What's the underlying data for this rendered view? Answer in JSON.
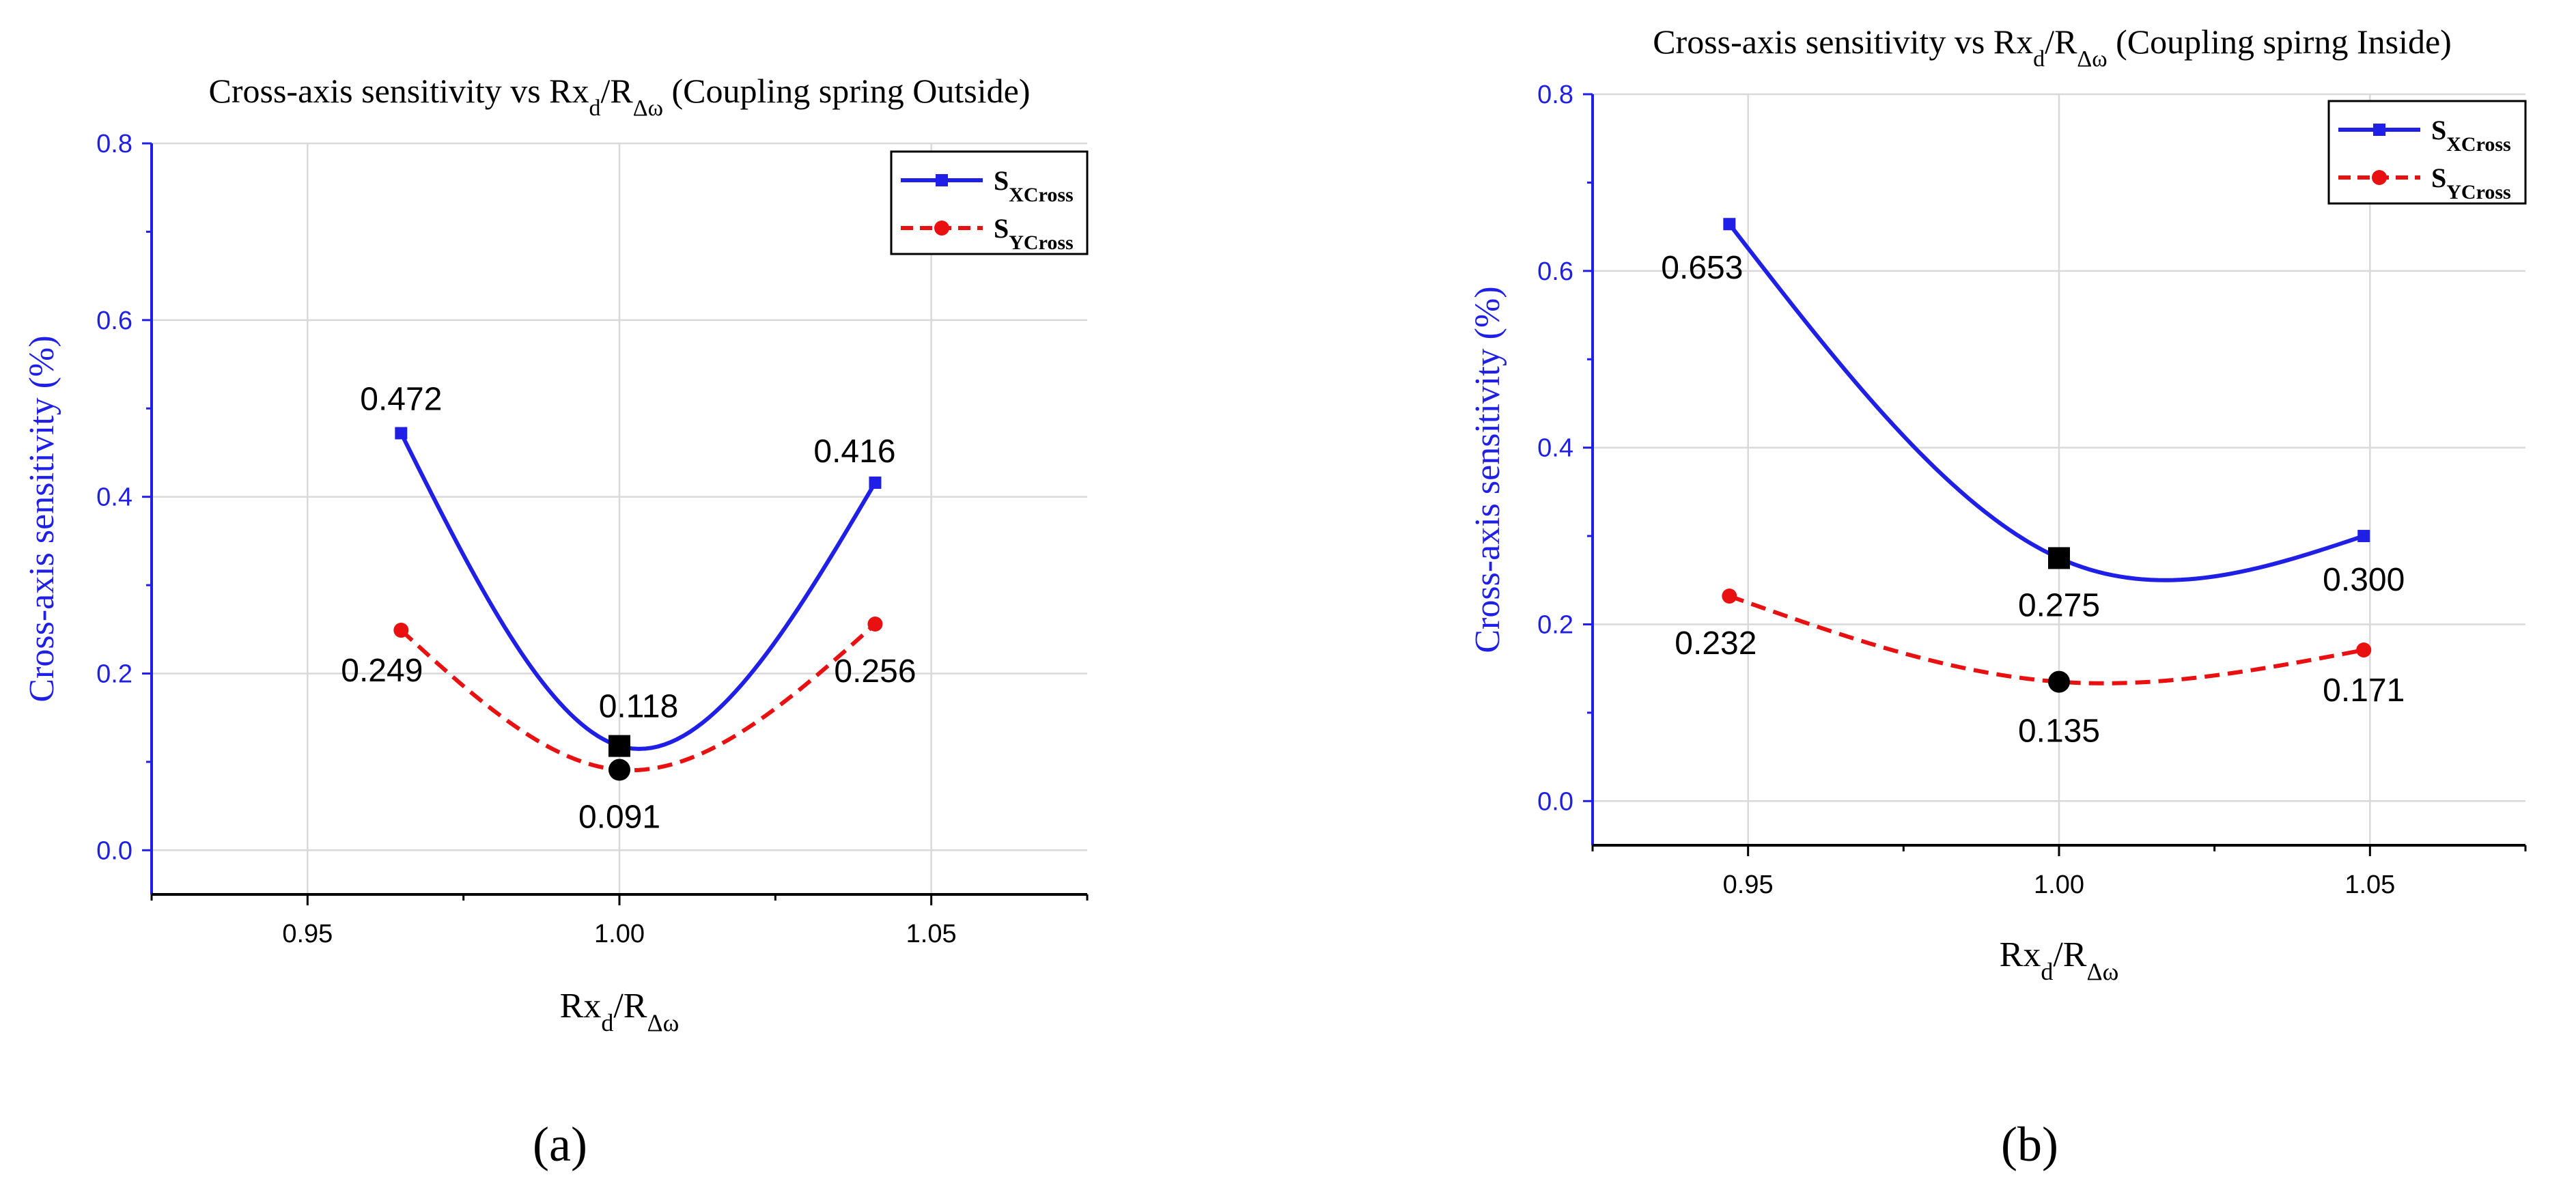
{
  "chart_data": [
    {
      "type": "line",
      "panel_label": "(a)",
      "title": "Cross-axis sensitivity  vs Rx_d/R_Δω (Coupling spring Outside)",
      "title_parts": {
        "prefix": "Cross-axis sensitivity  vs Rx",
        "sub1": "d",
        "mid": "/R",
        "sub2": "Δω",
        "suffix": " (Coupling spring Outside)"
      },
      "xlabel": "Rx_d/R_Δω",
      "xlabel_parts": {
        "main1": "Rx",
        "sub1": "d",
        "main2": "/R",
        "sub2": "Δω"
      },
      "ylabel": "Cross-axis sensitivity (%)",
      "xlim": [
        0.925,
        1.075
      ],
      "ylim": [
        -0.05,
        0.8
      ],
      "x_ticks": [
        0.95,
        1.0,
        1.05
      ],
      "x_tick_labels": [
        "0.95",
        "1.00",
        "1.05"
      ],
      "y_ticks": [
        0.0,
        0.2,
        0.4,
        0.6,
        0.8
      ],
      "y_tick_labels": [
        "0.0",
        "0.2",
        "0.4",
        "0.6",
        "0.8"
      ],
      "grid": true,
      "legend_position": "top-right",
      "series": [
        {
          "name": "S_XCross",
          "name_main": "S",
          "name_sub": "XCross",
          "color": "#1f1fe6",
          "marker": "square",
          "dash": "solid",
          "x": [
            0.965,
            1.0,
            1.041
          ],
          "y": [
            0.472,
            0.118,
            0.416
          ],
          "labels": [
            "0.472",
            "0.118",
            "0.416"
          ]
        },
        {
          "name": "S_YCross",
          "name_main": "S",
          "name_sub": "YCross",
          "color": "#e81010",
          "marker": "circle",
          "dash": "dashed",
          "x": [
            0.965,
            1.0,
            1.041
          ],
          "y": [
            0.249,
            0.091,
            0.256
          ],
          "labels": [
            "0.249",
            "0.091",
            "0.256"
          ]
        }
      ]
    },
    {
      "type": "line",
      "panel_label": "(b)",
      "title": "Cross-axis sensitivity  vs Rx_d/R_Δω (Coupling spirng Inside)",
      "title_parts": {
        "prefix": "Cross-axis sensitivity  vs Rx",
        "sub1": "d",
        "mid": "/R",
        "sub2": "Δω",
        "suffix": " (Coupling spirng Inside)"
      },
      "xlabel": "Rx_d/R_Δω",
      "xlabel_parts": {
        "main1": "Rx",
        "sub1": "d",
        "main2": "/R",
        "sub2": "Δω"
      },
      "ylabel": "Cross-axis sensitivity (%)",
      "xlim": [
        0.925,
        1.075
      ],
      "ylim": [
        -0.05,
        0.8
      ],
      "x_ticks": [
        0.95,
        1.0,
        1.05
      ],
      "x_tick_labels": [
        "0.95",
        "1.00",
        "1.05"
      ],
      "y_ticks": [
        0.0,
        0.2,
        0.4,
        0.6,
        0.8
      ],
      "y_tick_labels": [
        "0.0",
        "0.2",
        "0.4",
        "0.6",
        "0.8"
      ],
      "grid": true,
      "legend_position": "top-right",
      "series": [
        {
          "name": "S_XCross",
          "name_main": "S",
          "name_sub": "XCross",
          "color": "#1f1fe6",
          "marker": "square",
          "dash": "solid",
          "x": [
            0.947,
            1.0,
            1.049
          ],
          "y": [
            0.653,
            0.275,
            0.3
          ],
          "labels": [
            "0.653",
            "0.275",
            "0.300"
          ]
        },
        {
          "name": "S_YCross",
          "name_main": "S",
          "name_sub": "YCross",
          "color": "#e81010",
          "marker": "circle",
          "dash": "dashed",
          "x": [
            0.947,
            1.0,
            1.049
          ],
          "y": [
            0.232,
            0.135,
            0.171
          ],
          "labels": [
            "0.232",
            "0.135",
            "0.171"
          ]
        }
      ]
    }
  ]
}
